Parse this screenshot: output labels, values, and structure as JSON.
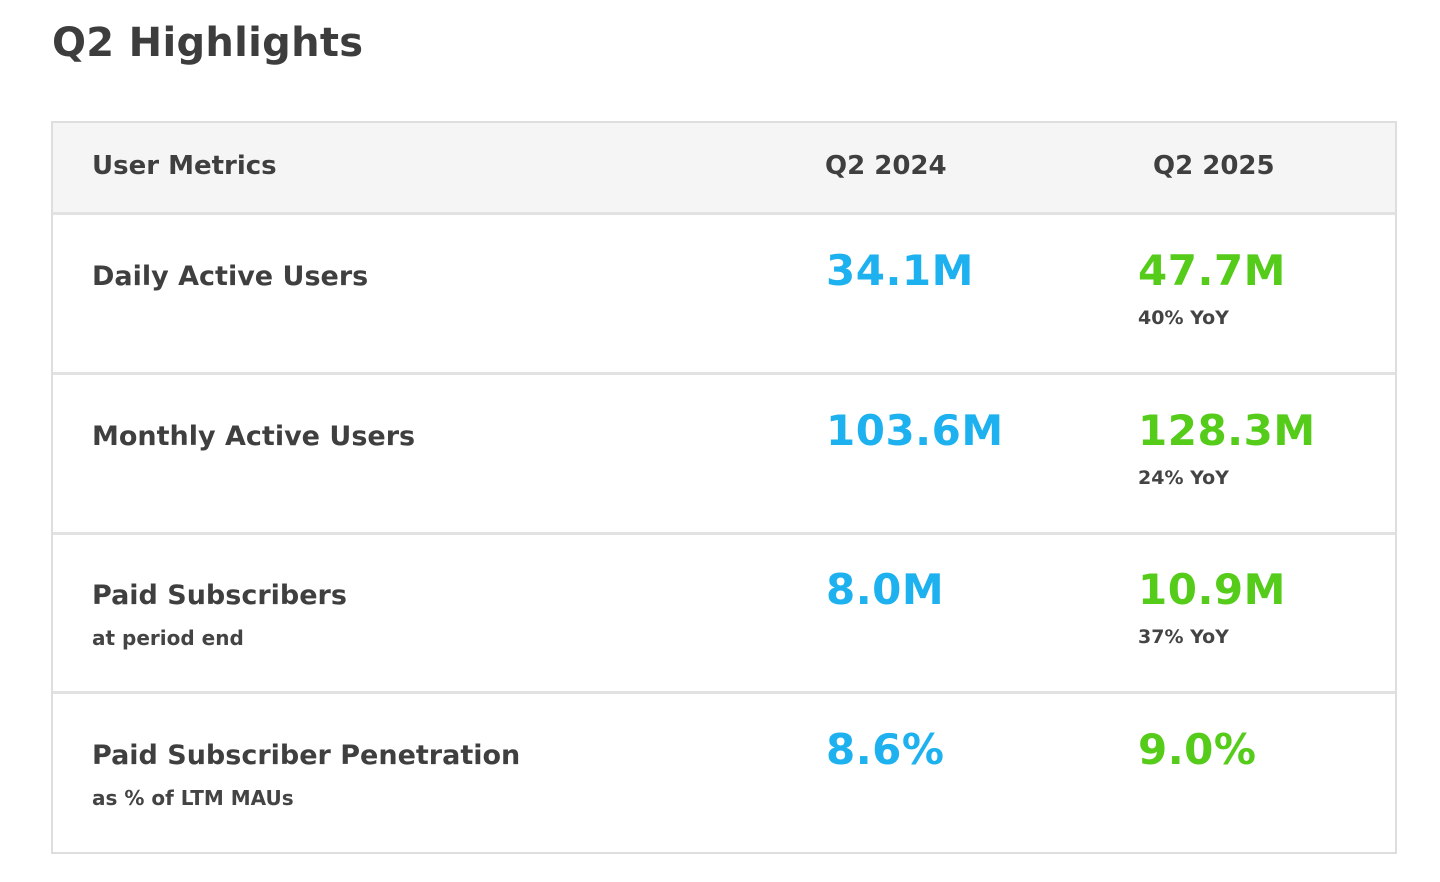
{
  "title": "Q2 Highlights",
  "colors": {
    "q2_2024_value": "#1eb1ef",
    "q2_2025_value": "#55cb1a",
    "header_bg": "#f5f5f5",
    "border": "#e2e2e2"
  },
  "table": {
    "headers": {
      "metric": "User Metrics",
      "q2_2024": "Q2 2024",
      "q2_2025": "Q2 2025"
    },
    "rows": [
      {
        "label": "Daily Active Users",
        "sublabel": "",
        "q2_2024": "34.1M",
        "q2_2025": "47.7M",
        "yoy": "40% YoY"
      },
      {
        "label": "Monthly Active Users",
        "sublabel": "",
        "q2_2024": "103.6M",
        "q2_2025": "128.3M",
        "yoy": "24% YoY"
      },
      {
        "label": "Paid Subscribers",
        "sublabel": "at period end",
        "q2_2024": "8.0M",
        "q2_2025": "10.9M",
        "yoy": "37% YoY"
      },
      {
        "label": "Paid Subscriber Penetration",
        "sublabel": "as % of LTM MAUs",
        "q2_2024": "8.6%",
        "q2_2025": "9.0%",
        "yoy": ""
      }
    ]
  }
}
